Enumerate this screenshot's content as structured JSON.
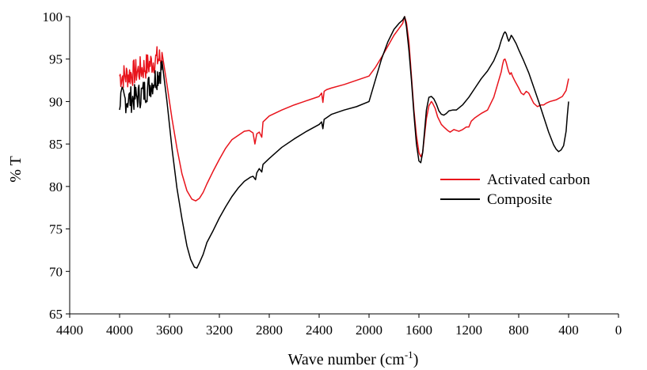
{
  "chart_data": {
    "type": "line",
    "title": "",
    "xlabel": "Wave number (cm",
    "xlabel_sup": "-1",
    "xlabel_suffix": ")",
    "ylabel": "% T",
    "xlim": [
      4400,
      0
    ],
    "ylim": [
      65,
      100
    ],
    "x_reversed": true,
    "x_ticks": [
      4400,
      4000,
      3600,
      3200,
      2800,
      2400,
      2000,
      1600,
      1200,
      800,
      400,
      0
    ],
    "y_ticks": [
      65,
      70,
      75,
      80,
      85,
      90,
      95,
      100
    ],
    "grid": false,
    "legend_position": "right",
    "series": [
      {
        "name": "Activated carbon",
        "color": "#e8141c",
        "noise_range": [
          3650,
          4000
        ],
        "x": [
          4000,
          3950,
          3900,
          3850,
          3800,
          3750,
          3700,
          3660,
          3620,
          3580,
          3540,
          3500,
          3460,
          3420,
          3390,
          3360,
          3330,
          3300,
          3250,
          3200,
          3150,
          3100,
          3050,
          3000,
          2960,
          2930,
          2915,
          2900,
          2880,
          2860,
          2850,
          2800,
          2700,
          2600,
          2500,
          2400,
          2380,
          2370,
          2360,
          2340,
          2300,
          2200,
          2100,
          2000,
          1950,
          1900,
          1850,
          1800,
          1760,
          1730,
          1715,
          1700,
          1680,
          1660,
          1640,
          1620,
          1600,
          1585,
          1570,
          1555,
          1540,
          1520,
          1500,
          1490,
          1470,
          1450,
          1420,
          1400,
          1370,
          1350,
          1320,
          1300,
          1280,
          1250,
          1220,
          1200,
          1180,
          1150,
          1120,
          1100,
          1050,
          1000,
          980,
          960,
          940,
          930,
          920,
          910,
          900,
          890,
          880,
          870,
          860,
          850,
          830,
          800,
          780,
          760,
          740,
          720,
          700,
          680,
          650,
          620,
          600,
          580,
          550,
          500,
          450,
          420,
          410,
          400
        ],
        "y": [
          93.0,
          93.0,
          93.3,
          93.6,
          94.0,
          94.5,
          95.0,
          95.0,
          92.0,
          88.0,
          84.5,
          81.5,
          79.5,
          78.5,
          78.3,
          78.6,
          79.3,
          80.3,
          81.8,
          83.2,
          84.5,
          85.5,
          86.0,
          86.5,
          86.6,
          86.3,
          85.0,
          86.2,
          86.4,
          85.8,
          87.6,
          88.3,
          89.0,
          89.6,
          90.1,
          90.6,
          91.0,
          89.9,
          91.2,
          91.4,
          91.6,
          92.0,
          92.5,
          93.0,
          94.0,
          95.2,
          96.5,
          97.8,
          98.6,
          99.2,
          100.0,
          99.3,
          97.0,
          93.0,
          89.0,
          86.0,
          84.0,
          83.5,
          84.0,
          86.0,
          88.0,
          89.5,
          90.0,
          89.8,
          89.2,
          88.2,
          87.3,
          87.0,
          86.6,
          86.4,
          86.7,
          86.6,
          86.5,
          86.7,
          87.0,
          87.0,
          87.7,
          88.1,
          88.4,
          88.6,
          89.0,
          90.5,
          91.5,
          92.5,
          93.5,
          94.3,
          94.9,
          95.0,
          94.6,
          94.0,
          93.5,
          93.2,
          93.4,
          93.0,
          92.4,
          91.6,
          91.0,
          90.8,
          91.2,
          91.0,
          90.4,
          89.8,
          89.4,
          89.6,
          89.6,
          89.8,
          90.0,
          90.2,
          90.6,
          91.3,
          92.0,
          92.7
        ]
      },
      {
        "name": "Composite",
        "color": "#000000",
        "noise_range": [
          3650,
          4000
        ],
        "x": [
          4000,
          3950,
          3900,
          3850,
          3800,
          3750,
          3700,
          3660,
          3620,
          3580,
          3540,
          3500,
          3460,
          3430,
          3400,
          3380,
          3360,
          3330,
          3300,
          3250,
          3200,
          3150,
          3100,
          3050,
          3000,
          2950,
          2930,
          2910,
          2900,
          2880,
          2860,
          2850,
          2800,
          2700,
          2600,
          2500,
          2400,
          2380,
          2370,
          2360,
          2340,
          2300,
          2200,
          2100,
          2000,
          1950,
          1900,
          1850,
          1800,
          1760,
          1730,
          1715,
          1700,
          1680,
          1660,
          1640,
          1620,
          1600,
          1585,
          1570,
          1555,
          1540,
          1520,
          1500,
          1480,
          1460,
          1440,
          1420,
          1400,
          1380,
          1360,
          1330,
          1300,
          1250,
          1200,
          1150,
          1100,
          1050,
          1000,
          960,
          940,
          920,
          910,
          900,
          890,
          880,
          870,
          860,
          850,
          820,
          800,
          760,
          720,
          680,
          640,
          600,
          560,
          520,
          500,
          480,
          460,
          440,
          420,
          410,
          400
        ],
        "y": [
          90.2,
          90.2,
          90.3,
          90.6,
          91.2,
          92.0,
          93.0,
          94.0,
          90.0,
          84.5,
          79.8,
          76.2,
          73.0,
          71.4,
          70.5,
          70.4,
          71.0,
          72.0,
          73.4,
          74.8,
          76.3,
          77.6,
          78.8,
          79.8,
          80.6,
          81.1,
          81.2,
          80.8,
          81.6,
          82.1,
          81.7,
          82.6,
          83.3,
          84.6,
          85.6,
          86.5,
          87.3,
          87.6,
          86.8,
          87.9,
          88.1,
          88.5,
          89.0,
          89.4,
          90.0,
          92.5,
          95.0,
          97.0,
          98.5,
          99.2,
          99.6,
          100.0,
          98.8,
          96.0,
          92.5,
          88.5,
          85.0,
          83.0,
          82.8,
          84.0,
          86.5,
          89.0,
          90.5,
          90.6,
          90.3,
          89.7,
          88.9,
          88.5,
          88.4,
          88.6,
          88.9,
          89.0,
          89.0,
          89.6,
          90.5,
          91.6,
          92.7,
          93.6,
          94.8,
          96.2,
          97.2,
          98.0,
          98.2,
          98.0,
          97.5,
          97.1,
          97.4,
          97.8,
          97.6,
          96.8,
          96.1,
          94.8,
          93.4,
          91.7,
          90.0,
          88.2,
          86.4,
          84.9,
          84.4,
          84.1,
          84.3,
          84.8,
          86.5,
          88.4,
          90.0
        ]
      }
    ]
  }
}
